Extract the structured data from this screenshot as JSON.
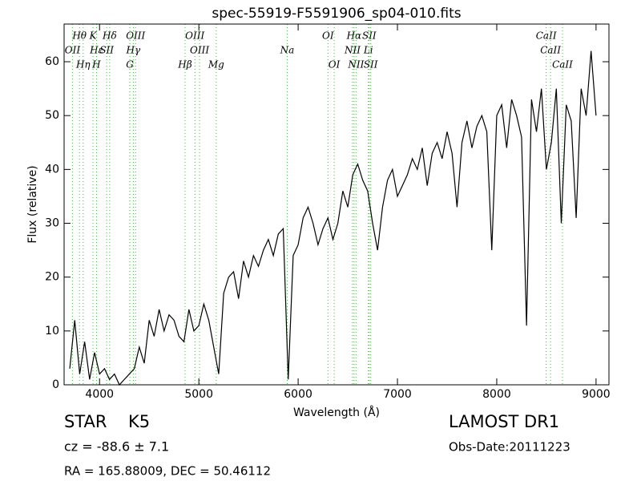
{
  "chart_data": {
    "type": "line",
    "title": "spec-55919-F5591906_sp04-010.fits",
    "x_label": "Wavelength (Å)",
    "y_label": "Flux (relative)",
    "xlim": [
      3643,
      9130
    ],
    "ylim": [
      0,
      67
    ],
    "xticks": [
      4000,
      5000,
      6000,
      7000,
      8000,
      9000
    ],
    "yticks": [
      0,
      10,
      20,
      30,
      40,
      50,
      60
    ],
    "color": "#000000",
    "x": [
      3700,
      3750,
      3800,
      3850,
      3900,
      3950,
      4000,
      4050,
      4100,
      4150,
      4200,
      4250,
      4300,
      4350,
      4400,
      4450,
      4500,
      4550,
      4600,
      4650,
      4700,
      4750,
      4800,
      4850,
      4900,
      4950,
      5000,
      5050,
      5100,
      5150,
      5200,
      5250,
      5300,
      5350,
      5400,
      5450,
      5500,
      5550,
      5600,
      5650,
      5700,
      5750,
      5800,
      5850,
      5900,
      5950,
      6000,
      6050,
      6100,
      6150,
      6200,
      6250,
      6300,
      6350,
      6400,
      6450,
      6500,
      6550,
      6600,
      6650,
      6700,
      6750,
      6800,
      6850,
      6900,
      6950,
      7000,
      7050,
      7100,
      7150,
      7200,
      7250,
      7300,
      7350,
      7400,
      7450,
      7500,
      7550,
      7600,
      7650,
      7700,
      7750,
      7800,
      7850,
      7900,
      7950,
      8000,
      8050,
      8100,
      8150,
      8200,
      8250,
      8300,
      8350,
      8400,
      8450,
      8500,
      8550,
      8600,
      8650,
      8700,
      8750,
      8800,
      8850,
      8900,
      8950,
      9000
    ],
    "values": [
      3,
      12,
      2,
      8,
      1,
      6,
      2,
      3,
      1,
      2,
      0,
      1,
      2,
      3,
      7,
      4,
      12,
      9,
      14,
      10,
      13,
      12,
      9,
      8,
      14,
      10,
      11,
      15,
      12,
      7,
      2,
      17,
      20,
      21,
      16,
      23,
      20,
      24,
      22,
      25,
      27,
      24,
      28,
      29,
      1,
      24,
      26,
      31,
      33,
      30,
      26,
      29,
      31,
      27,
      30,
      36,
      33,
      39,
      41,
      38,
      36,
      30,
      25,
      33,
      38,
      40,
      35,
      37,
      39,
      42,
      40,
      44,
      37,
      43,
      45,
      42,
      47,
      43,
      33,
      45,
      49,
      44,
      48,
      50,
      47,
      25,
      50,
      52,
      44,
      53,
      50,
      46,
      11,
      53,
      47,
      55,
      40,
      45,
      55,
      30,
      52,
      49,
      31,
      55,
      50,
      62,
      50
    ],
    "lines": [
      {
        "label": "Hθ",
        "x": 3798
      },
      {
        "label": "K",
        "x": 3934
      },
      {
        "label": "Hδ",
        "x": 4102
      },
      {
        "label": "OIII",
        "x": 4363
      },
      {
        "label": "OIII",
        "x": 4960
      },
      {
        "label": "OI",
        "x": 6300
      },
      {
        "label": "Hα",
        "x": 6563
      },
      {
        "label": "SII",
        "x": 6716
      },
      {
        "label": "CaII",
        "x": 8498
      },
      {
        "label": "OII",
        "x": 3727
      },
      {
        "label": "Hε",
        "x": 3970
      },
      {
        "label": "SII",
        "x": 4072
      },
      {
        "label": "Hγ",
        "x": 4340
      },
      {
        "label": "OIII",
        "x": 5007
      },
      {
        "label": "Na",
        "x": 5890
      },
      {
        "label": "NII",
        "x": 6548
      },
      {
        "label": "Li",
        "x": 6707
      },
      {
        "label": "CaII",
        "x": 8542
      },
      {
        "label": "Hη",
        "x": 3835
      },
      {
        "label": "H",
        "x": 3969
      },
      {
        "label": "G",
        "x": 4305
      },
      {
        "label": "Hβ",
        "x": 4861
      },
      {
        "label": "Mg",
        "x": 5175
      },
      {
        "label": "OI",
        "x": 6363
      },
      {
        "label": "NII",
        "x": 6583
      },
      {
        "label": "SII",
        "x": 6731
      },
      {
        "label": "CaII",
        "x": 8662
      }
    ],
    "line_color": "#55aa55",
    "object_class": "STAR",
    "subclass": "K5",
    "redshift": "cz = -88.6 ± 7.1",
    "coordinates": "RA = 165.88009, DEC = 50.46112",
    "survey": "LAMOST DR1",
    "obs_date": "Obs-Date:20111223"
  }
}
